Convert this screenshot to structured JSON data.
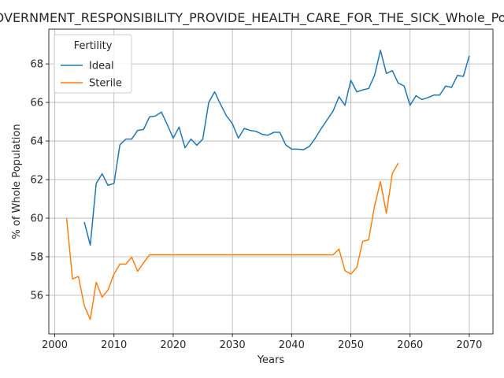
{
  "chart_data": {
    "type": "line",
    "title": "GOVERNMENT_RESPONSIBILITY_PROVIDE_HEALTH_CARE_FOR_THE_SICK_Whole_Population",
    "xlabel": "Years",
    "ylabel": "% of Whole Population",
    "xlim": [
      1999,
      2074
    ],
    "ylim": [
      54.0,
      69.8
    ],
    "xticks": [
      2000,
      2010,
      2020,
      2030,
      2040,
      2050,
      2060,
      2070
    ],
    "yticks": [
      56,
      58,
      60,
      62,
      64,
      66,
      68
    ],
    "grid": true,
    "legend": {
      "title": "Fertility",
      "placement": "top-left"
    },
    "series": [
      {
        "name": "Ideal",
        "color": "#1f77b4",
        "x": [
          2005,
          2006,
          2007,
          2008,
          2009,
          2010,
          2011,
          2012,
          2013,
          2014,
          2015,
          2016,
          2017,
          2018,
          2019,
          2020,
          2021,
          2022,
          2023,
          2024,
          2025,
          2026,
          2027,
          2028,
          2029,
          2030,
          2031,
          2032,
          2033,
          2034,
          2035,
          2036,
          2037,
          2038,
          2039,
          2040,
          2041,
          2042,
          2043,
          2044,
          2045,
          2046,
          2047,
          2048,
          2049,
          2050,
          2051,
          2052,
          2053,
          2054,
          2055,
          2056,
          2057,
          2058,
          2059,
          2060,
          2061,
          2062,
          2063,
          2064,
          2065,
          2066,
          2067,
          2068,
          2069,
          2070
        ],
        "y": [
          59.8,
          58.6,
          61.8,
          62.3,
          61.7,
          61.8,
          63.8,
          64.1,
          64.1,
          64.55,
          64.6,
          65.25,
          65.3,
          65.5,
          64.85,
          64.15,
          64.72,
          63.65,
          64.1,
          63.78,
          64.1,
          66.0,
          66.55,
          65.9,
          65.3,
          64.9,
          64.15,
          64.65,
          64.55,
          64.5,
          64.35,
          64.3,
          64.45,
          64.45,
          63.8,
          63.58,
          63.58,
          63.55,
          63.72,
          64.15,
          64.65,
          65.1,
          65.55,
          66.3,
          65.85,
          67.15,
          66.55,
          66.65,
          66.72,
          67.4,
          68.7,
          67.5,
          67.65,
          67.0,
          66.85,
          65.85,
          66.35,
          66.15,
          66.25,
          66.38,
          66.38,
          66.85,
          66.78,
          67.4,
          67.35,
          68.42
        ]
      },
      {
        "name": "Sterile",
        "color": "#ff7f0e",
        "x": [
          2002,
          2003,
          2004,
          2005,
          2006,
          2007,
          2008,
          2009,
          2010,
          2011,
          2012,
          2013,
          2014,
          2015,
          2016,
          2017,
          2018,
          2019,
          2020,
          2021,
          2022,
          2023,
          2024,
          2025,
          2026,
          2027,
          2028,
          2029,
          2030,
          2031,
          2032,
          2033,
          2034,
          2035,
          2036,
          2037,
          2038,
          2039,
          2040,
          2041,
          2042,
          2043,
          2044,
          2045,
          2046,
          2047,
          2048,
          2049,
          2050,
          2051,
          2052,
          2053,
          2054,
          2055,
          2056,
          2057,
          2058
        ],
        "y": [
          60.0,
          56.85,
          56.98,
          55.45,
          54.75,
          56.68,
          55.9,
          56.28,
          57.1,
          57.62,
          57.62,
          57.98,
          57.25,
          57.68,
          58.1,
          58.1,
          58.1,
          58.1,
          58.1,
          58.1,
          58.1,
          58.1,
          58.1,
          58.1,
          58.1,
          58.1,
          58.1,
          58.1,
          58.1,
          58.1,
          58.1,
          58.1,
          58.1,
          58.1,
          58.1,
          58.1,
          58.1,
          58.1,
          58.1,
          58.1,
          58.1,
          58.1,
          58.1,
          58.1,
          58.1,
          58.1,
          58.4,
          57.28,
          57.1,
          57.45,
          58.8,
          58.88,
          60.62,
          61.9,
          60.25,
          62.32,
          62.85
        ]
      }
    ]
  }
}
